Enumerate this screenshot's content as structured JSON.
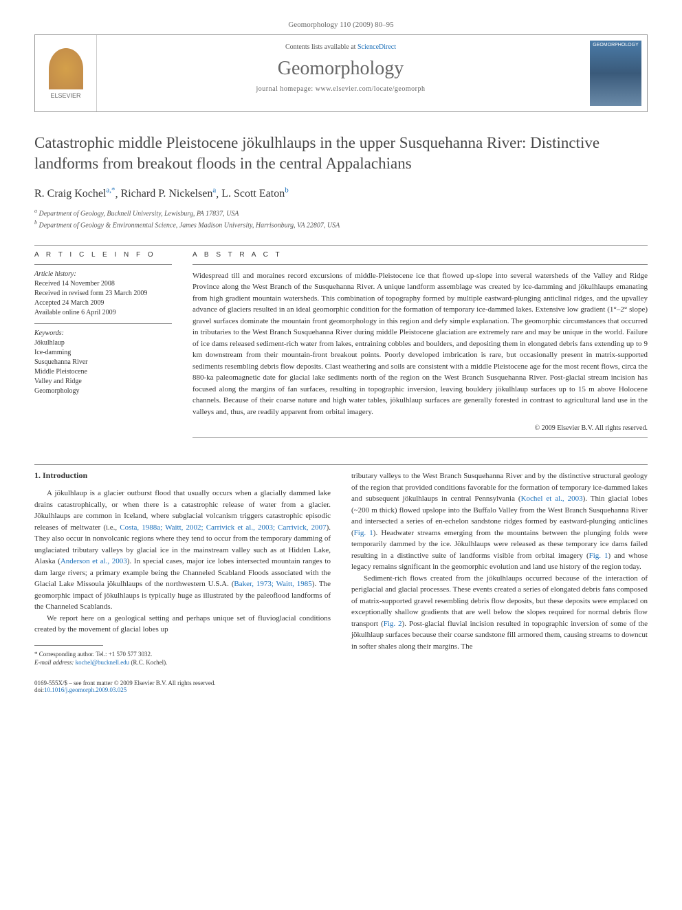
{
  "journal_header": "Geomorphology 110 (2009) 80–95",
  "header": {
    "elsevier_label": "ELSEVIER",
    "contents_prefix": "Contents lists available at ",
    "sciencedirect": "ScienceDirect",
    "journal_name": "Geomorphology",
    "homepage_prefix": "journal homepage: ",
    "homepage_url": "www.elsevier.com/locate/geomorph",
    "cover_text": "GEOMORPHOLOGY"
  },
  "title": "Catastrophic middle Pleistocene jökulhlaups in the upper Susquehanna River: Distinctive landforms from breakout floods in the central Appalachians",
  "authors": [
    {
      "name": "R. Craig Kochel",
      "sup": "a,*"
    },
    {
      "name": "Richard P. Nickelsen",
      "sup": "a"
    },
    {
      "name": "L. Scott Eaton",
      "sup": "b"
    }
  ],
  "affiliations": [
    {
      "sup": "a",
      "text": "Department of Geology, Bucknell University, Lewisburg, PA 17837, USA"
    },
    {
      "sup": "b",
      "text": "Department of Geology & Environmental Science, James Madison University, Harrisonburg, VA 22807, USA"
    }
  ],
  "article_info": {
    "heading": "A R T I C L E   I N F O",
    "history_label": "Article history:",
    "history": [
      "Received 14 November 2008",
      "Received in revised form 23 March 2009",
      "Accepted 24 March 2009",
      "Available online 6 April 2009"
    ],
    "keywords_label": "Keywords:",
    "keywords": [
      "Jökulhlaup",
      "Ice-damming",
      "Susquehanna River",
      "Middle Pleistocene",
      "Valley and Ridge",
      "Geomorphology"
    ]
  },
  "abstract": {
    "heading": "A B S T R A C T",
    "text": "Widespread till and moraines record excursions of middle-Pleistocene ice that flowed up-slope into several watersheds of the Valley and Ridge Province along the West Branch of the Susquehanna River. A unique landform assemblage was created by ice-damming and jökulhlaups emanating from high gradient mountain watersheds. This combination of topography formed by multiple eastward-plunging anticlinal ridges, and the upvalley advance of glaciers resulted in an ideal geomorphic condition for the formation of temporary ice-dammed lakes. Extensive low gradient (1°–2° slope) gravel surfaces dominate the mountain front geomorphology in this region and defy simple explanation. The geomorphic circumstances that occurred in tributaries to the West Branch Susquehanna River during middle Pleistocene glaciation are extremely rare and may be unique in the world. Failure of ice dams released sediment-rich water from lakes, entraining cobbles and boulders, and depositing them in elongated debris fans extending up to 9 km downstream from their mountain-front breakout points. Poorly developed imbrication is rare, but occasionally present in matrix-supported sediments resembling debris flow deposits. Clast weathering and soils are consistent with a middle Pleistocene age for the most recent flows, circa the 880-ka paleomagnetic date for glacial lake sediments north of the region on the West Branch Susquehanna River. Post-glacial stream incision has focused along the margins of fan surfaces, resulting in topographic inversion, leaving bouldery jökulhlaup surfaces up to 15 m above Holocene channels. Because of their coarse nature and high water tables, jökulhlaup surfaces are generally forested in contrast to agricultural land use in the valleys and, thus, are readily apparent from orbital imagery.",
    "copyright": "© 2009 Elsevier B.V. All rights reserved."
  },
  "body": {
    "section_heading": "1. Introduction",
    "col1_para1_pre": "A jökulhlaup is a glacier outburst flood that usually occurs when a glacially dammed lake drains catastrophically, or when there is a catastrophic release of water from a glacier. Jökulhlaups are common in Iceland, where subglacial volcanism triggers catastrophic episodic releases of meltwater (i.e., ",
    "col1_para1_refs1": "Costa, 1988a; Waitt, 2002; Carrivick et al., 2003; Carrivick, 2007",
    "col1_para1_mid1": "). They also occur in nonvolcanic regions where they tend to occur from the temporary damming of unglaciated tributary valleys by glacial ice in the mainstream valley such as at Hidden Lake, Alaska (",
    "col1_para1_refs2": "Anderson et al., 2003",
    "col1_para1_mid2": "). In special cases, major ice lobes intersected mountain ranges to dam large rivers; a primary example being the Channeled Scabland Floods associated with the Glacial Lake Missoula jökulhlaups of the northwestern U.S.A. (",
    "col1_para1_refs3": "Baker, 1973; Waitt, 1985",
    "col1_para1_post": "). The geomorphic impact of jökulhlaups is typically huge as illustrated by the paleoflood landforms of the Channeled Scablands.",
    "col1_para2": "We report here on a geological setting and perhaps unique set of fluvioglacial conditions created by the movement of glacial lobes up",
    "col2_para1_pre": "tributary valleys to the West Branch Susquehanna River and by the distinctive structural geology of the region that provided conditions favorable for the formation of temporary ice-dammed lakes and subsequent jökulhlaups in central Pennsylvania (",
    "col2_para1_ref1": "Kochel et al., 2003",
    "col2_para1_mid1": "). Thin glacial lobes (~200 m thick) flowed upslope into the Buffalo Valley from the West Branch Susquehanna River and intersected a series of en-echelon sandstone ridges formed by eastward-plunging anticlines (",
    "col2_para1_ref2": "Fig. 1",
    "col2_para1_mid2": "). Headwater streams emerging from the mountains between the plunging folds were temporarily dammed by the ice. Jökulhlaups were released as these temporary ice dams failed resulting in a distinctive suite of landforms visible from orbital imagery (",
    "col2_para1_ref3": "Fig. 1",
    "col2_para1_post": ") and whose legacy remains significant in the geomorphic evolution and land use history of the region today.",
    "col2_para2_pre": "Sediment-rich flows created from the jökulhlaups occurred because of the interaction of periglacial and glacial processes. These events created a series of elongated debris fans composed of matrix-supported gravel resembling debris flow deposits, but these deposits were emplaced on exceptionally shallow gradients that are well below the slopes required for normal debris flow transport (",
    "col2_para2_ref1": "Fig. 2",
    "col2_para2_post": "). Post-glacial fluvial incision resulted in topographic inversion of some of the jökulhlaup surfaces because their coarse sandstone fill armored them, causing streams to downcut in softer shales along their margins. The"
  },
  "footnote": {
    "corresponding": "* Corresponding author. Tel.: +1 570 577 3032.",
    "email_label": "E-mail address: ",
    "email": "kochel@bucknell.edu",
    "email_suffix": " (R.C. Kochel)."
  },
  "footer": {
    "line1": "0169-555X/$ – see front matter © 2009 Elsevier B.V. All rights reserved.",
    "doi_prefix": "doi:",
    "doi": "10.1016/j.geomorph.2009.03.025"
  }
}
